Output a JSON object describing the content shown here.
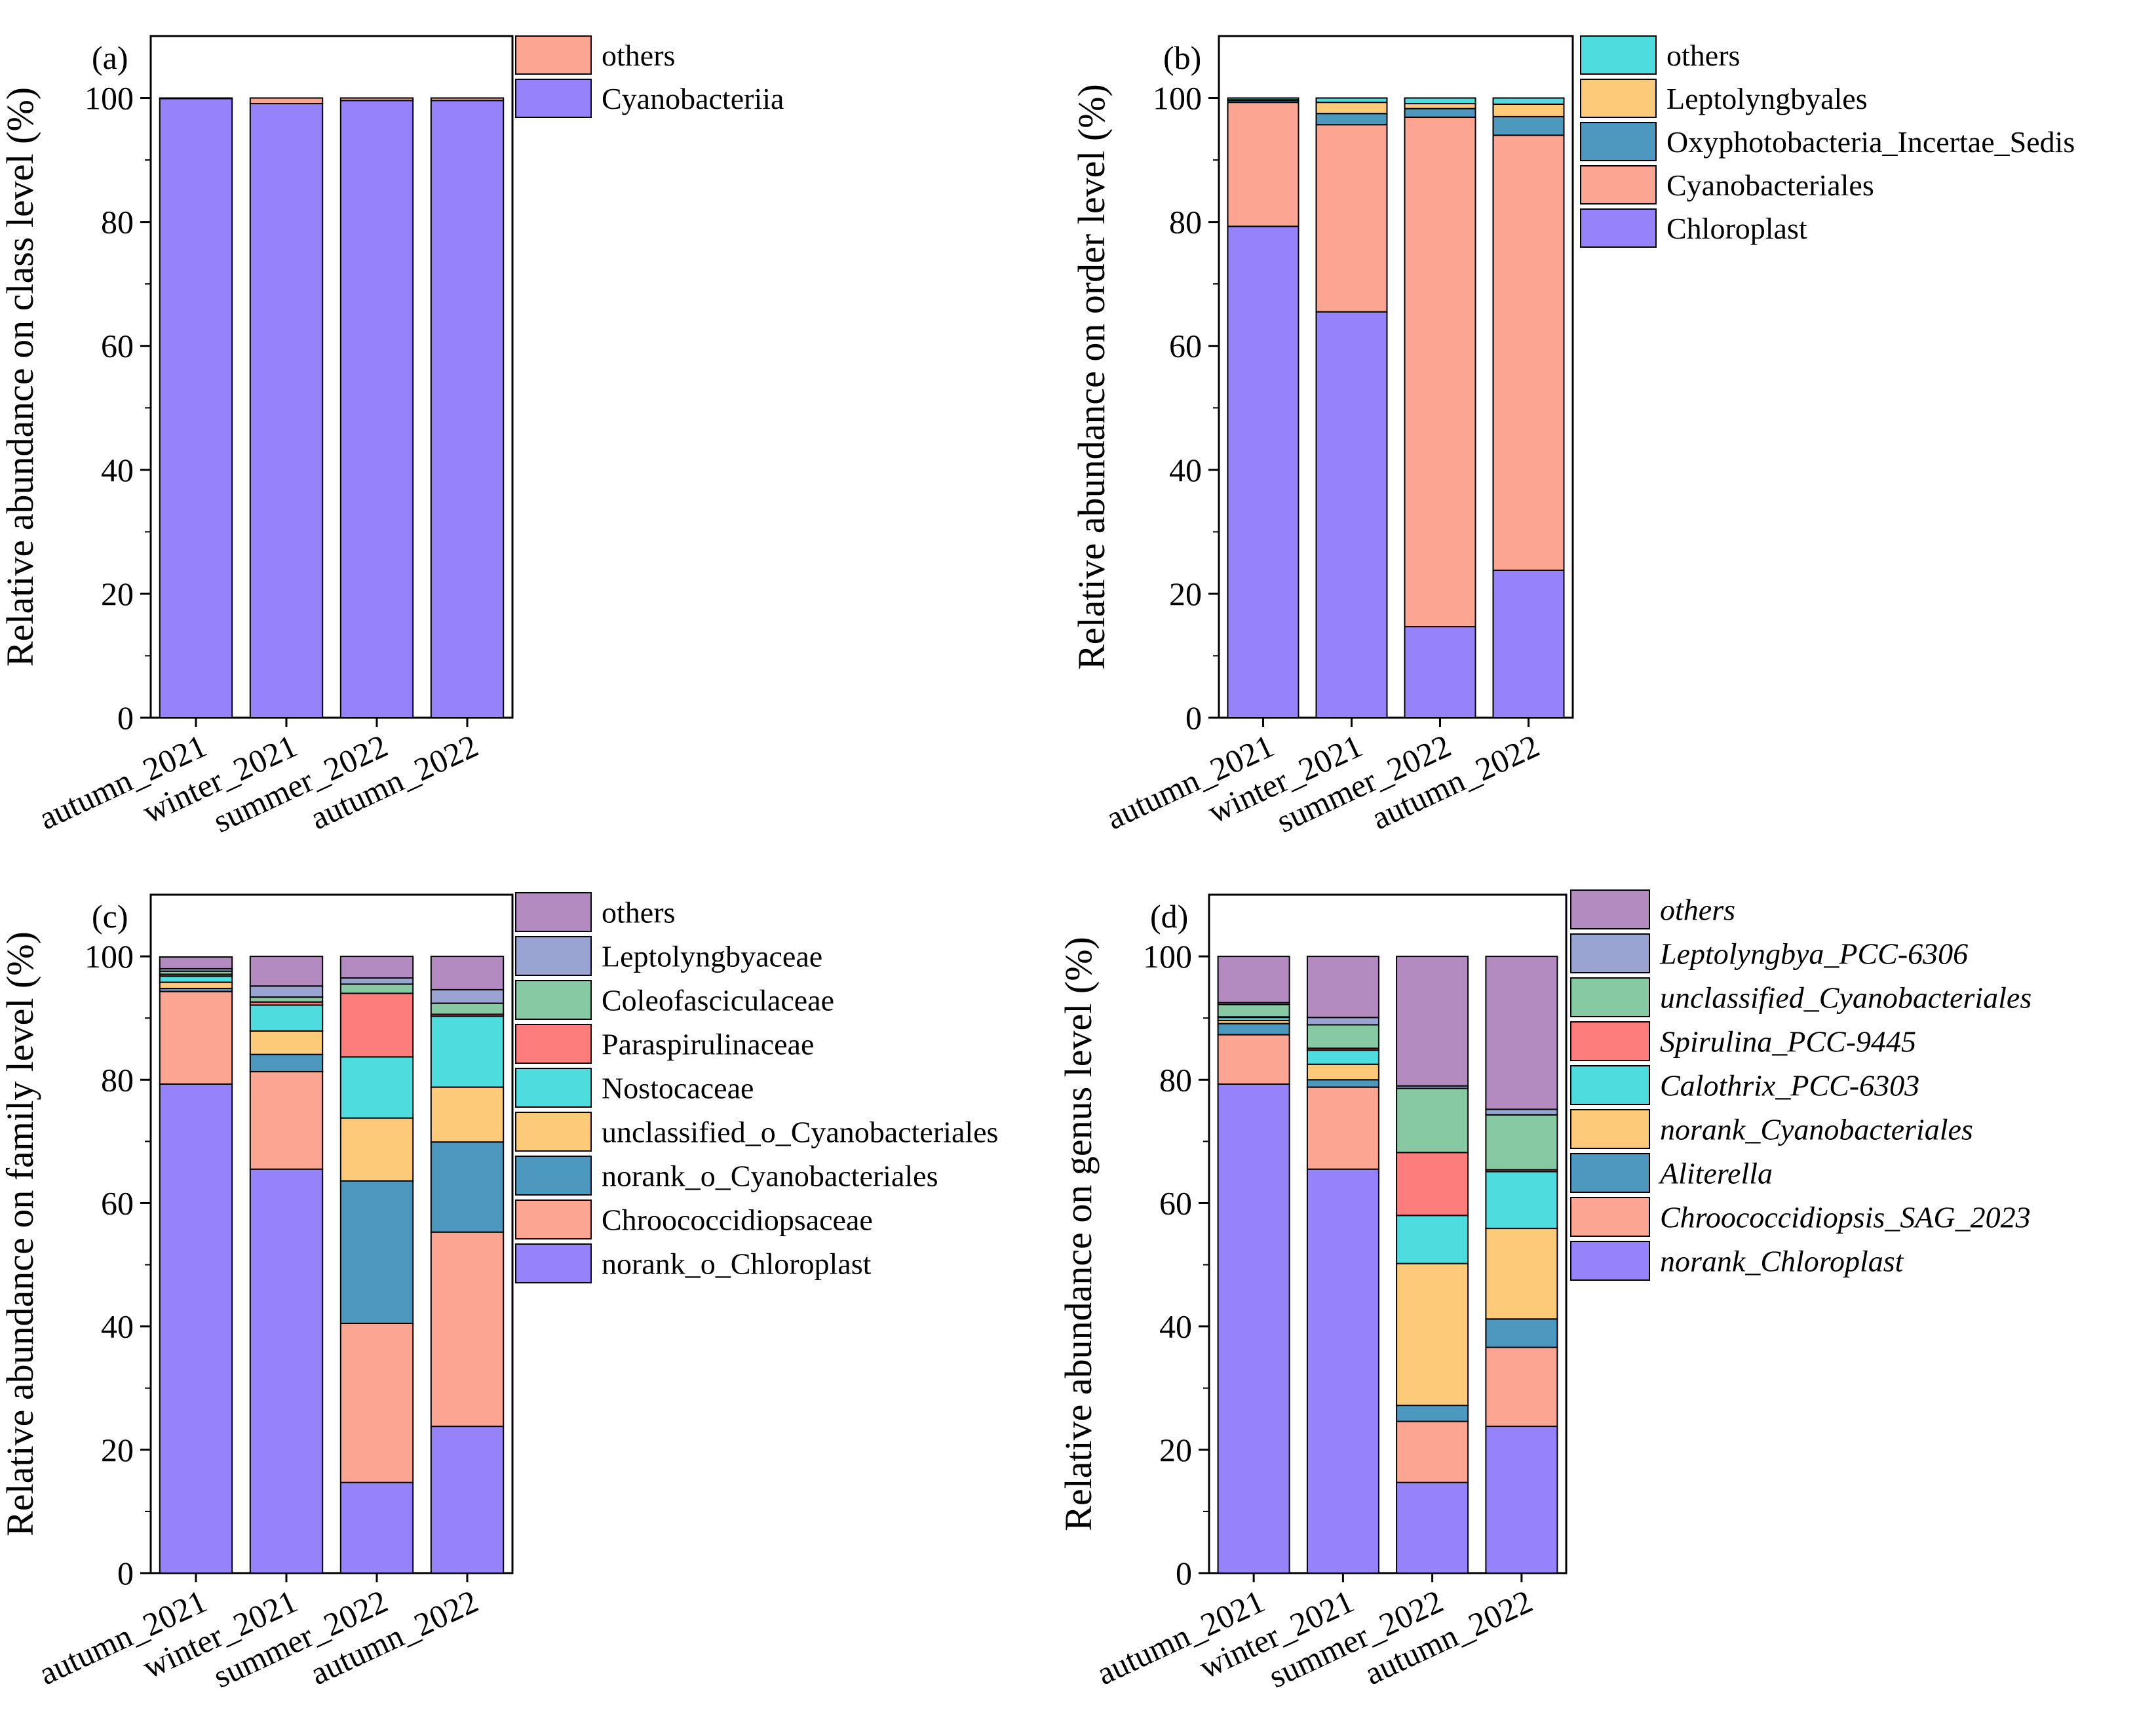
{
  "chart_data": [
    {
      "panel_label": "(a)",
      "type": "bar",
      "stacked": true,
      "ylabel": "Relative abundance on class level (%)",
      "xlabel": "",
      "ylim": [
        0,
        110
      ],
      "yticks": [
        0,
        20,
        40,
        60,
        80,
        100
      ],
      "categories": [
        "autumn_2021",
        "winter_2021",
        "summer_2022",
        "autumn_2022"
      ],
      "legend_italic": false,
      "series": [
        {
          "name": "Cyanobacteriia",
          "color": "#9683FC",
          "values": [
            99.9,
            99.1,
            99.6,
            99.6
          ]
        },
        {
          "name": "others",
          "color": "#FCA592",
          "values": [
            0.1,
            0.9,
            0.4,
            0.4
          ]
        }
      ]
    },
    {
      "panel_label": "(b)",
      "type": "bar",
      "stacked": true,
      "ylabel": "Relative abundance on order level (%)",
      "xlabel": "",
      "ylim": [
        0,
        110
      ],
      "yticks": [
        0,
        20,
        40,
        60,
        80,
        100
      ],
      "categories": [
        "autumn_2021",
        "winter_2021",
        "summer_2022",
        "autumn_2022"
      ],
      "legend_italic": false,
      "series": [
        {
          "name": "Chloroplast",
          "color": "#9683FC",
          "values": [
            79.3,
            65.5,
            14.7,
            23.8
          ]
        },
        {
          "name": "Cyanobacteriales",
          "color": "#FCA592",
          "values": [
            20.0,
            30.2,
            82.2,
            70.2
          ]
        },
        {
          "name": "Oxyphotobacteria_Incertae_Sedis",
          "color": "#4D98BE",
          "values": [
            0.3,
            1.8,
            1.4,
            3.0
          ]
        },
        {
          "name": "Leptolyngbyales",
          "color": "#FCCA78",
          "values": [
            0.1,
            1.8,
            0.8,
            2.0
          ]
        },
        {
          "name": "others",
          "color": "#4EDCDE",
          "values": [
            0.3,
            0.7,
            0.9,
            1.0
          ]
        }
      ]
    },
    {
      "panel_label": "(c)",
      "type": "bar",
      "stacked": true,
      "ylabel": "Relative abundance on family level (%)",
      "xlabel": "",
      "ylim": [
        0,
        110
      ],
      "yticks": [
        0,
        20,
        40,
        60,
        80,
        100
      ],
      "categories": [
        "autumn_2021",
        "winter_2021",
        "summer_2022",
        "autumn_2022"
      ],
      "legend_italic": false,
      "series": [
        {
          "name": "norank_o_Chloroplast",
          "color": "#9683FC",
          "values": [
            79.3,
            65.5,
            14.7,
            23.8
          ]
        },
        {
          "name": "Chroococcidiopsaceae",
          "color": "#FCA592",
          "values": [
            15.0,
            15.8,
            25.8,
            31.5
          ]
        },
        {
          "name": "norank_o_Cyanobacteriales",
          "color": "#4D98BE",
          "values": [
            0.5,
            2.8,
            23.1,
            14.6
          ]
        },
        {
          "name": "unclassified_o_Cyanobacteriales",
          "color": "#FCCA78",
          "values": [
            1.0,
            3.8,
            10.2,
            8.9
          ]
        },
        {
          "name": "Nostocaceae",
          "color": "#4EDCDE",
          "values": [
            1.0,
            4.2,
            9.9,
            11.5
          ]
        },
        {
          "name": "Paraspirulinaceae",
          "color": "#FD7C7C",
          "values": [
            0.3,
            0.5,
            10.3,
            0.3
          ]
        },
        {
          "name": "Coleofasciculaceae",
          "color": "#86C9A3",
          "values": [
            0.5,
            0.8,
            1.5,
            1.8
          ]
        },
        {
          "name": "Leptolyngbyaceae",
          "color": "#9AA4D2",
          "values": [
            0.4,
            1.8,
            1.0,
            2.2
          ]
        },
        {
          "name": "others",
          "color": "#B48BC0",
          "values": [
            1.9,
            4.8,
            3.5,
            5.4
          ]
        }
      ]
    },
    {
      "panel_label": "(d)",
      "type": "bar",
      "stacked": true,
      "ylabel": "Relative abundance on genus level (%)",
      "xlabel": "",
      "ylim": [
        0,
        110
      ],
      "yticks": [
        0,
        20,
        40,
        60,
        80,
        100
      ],
      "categories": [
        "autumn_2021",
        "winter_2021",
        "summer_2022",
        "autumn_2022"
      ],
      "legend_italic": true,
      "series": [
        {
          "name": "norank_Chloroplast",
          "color": "#9683FC",
          "values": [
            79.3,
            65.5,
            14.7,
            23.8
          ]
        },
        {
          "name": "Chroococcidiopsis_SAG_2023",
          "color": "#FCA592",
          "values": [
            8.0,
            13.3,
            9.9,
            12.8
          ]
        },
        {
          "name": "Aliterella",
          "color": "#4D98BE",
          "values": [
            1.8,
            1.2,
            2.6,
            4.6
          ]
        },
        {
          "name": "norank_Cyanobacteriales",
          "color": "#FCCA78",
          "values": [
            0.5,
            2.5,
            23.0,
            14.7
          ]
        },
        {
          "name": "Calothrix_PCC-6303",
          "color": "#4EDCDE",
          "values": [
            0.5,
            2.3,
            7.8,
            9.2
          ]
        },
        {
          "name": "Spirulina_PCC-9445",
          "color": "#FD7C7C",
          "values": [
            0.1,
            0.3,
            10.2,
            0.3
          ]
        },
        {
          "name": "unclassified_Cyanobacteriales",
          "color": "#86C9A3",
          "values": [
            2.0,
            3.8,
            10.4,
            8.9
          ]
        },
        {
          "name": "Leptolyngbya_PCC-6306",
          "color": "#9AA4D2",
          "values": [
            0.3,
            1.2,
            0.4,
            0.9
          ]
        },
        {
          "name": "others",
          "color": "#B48BC0",
          "values": [
            7.5,
            9.9,
            21.0,
            24.8
          ]
        }
      ]
    }
  ]
}
